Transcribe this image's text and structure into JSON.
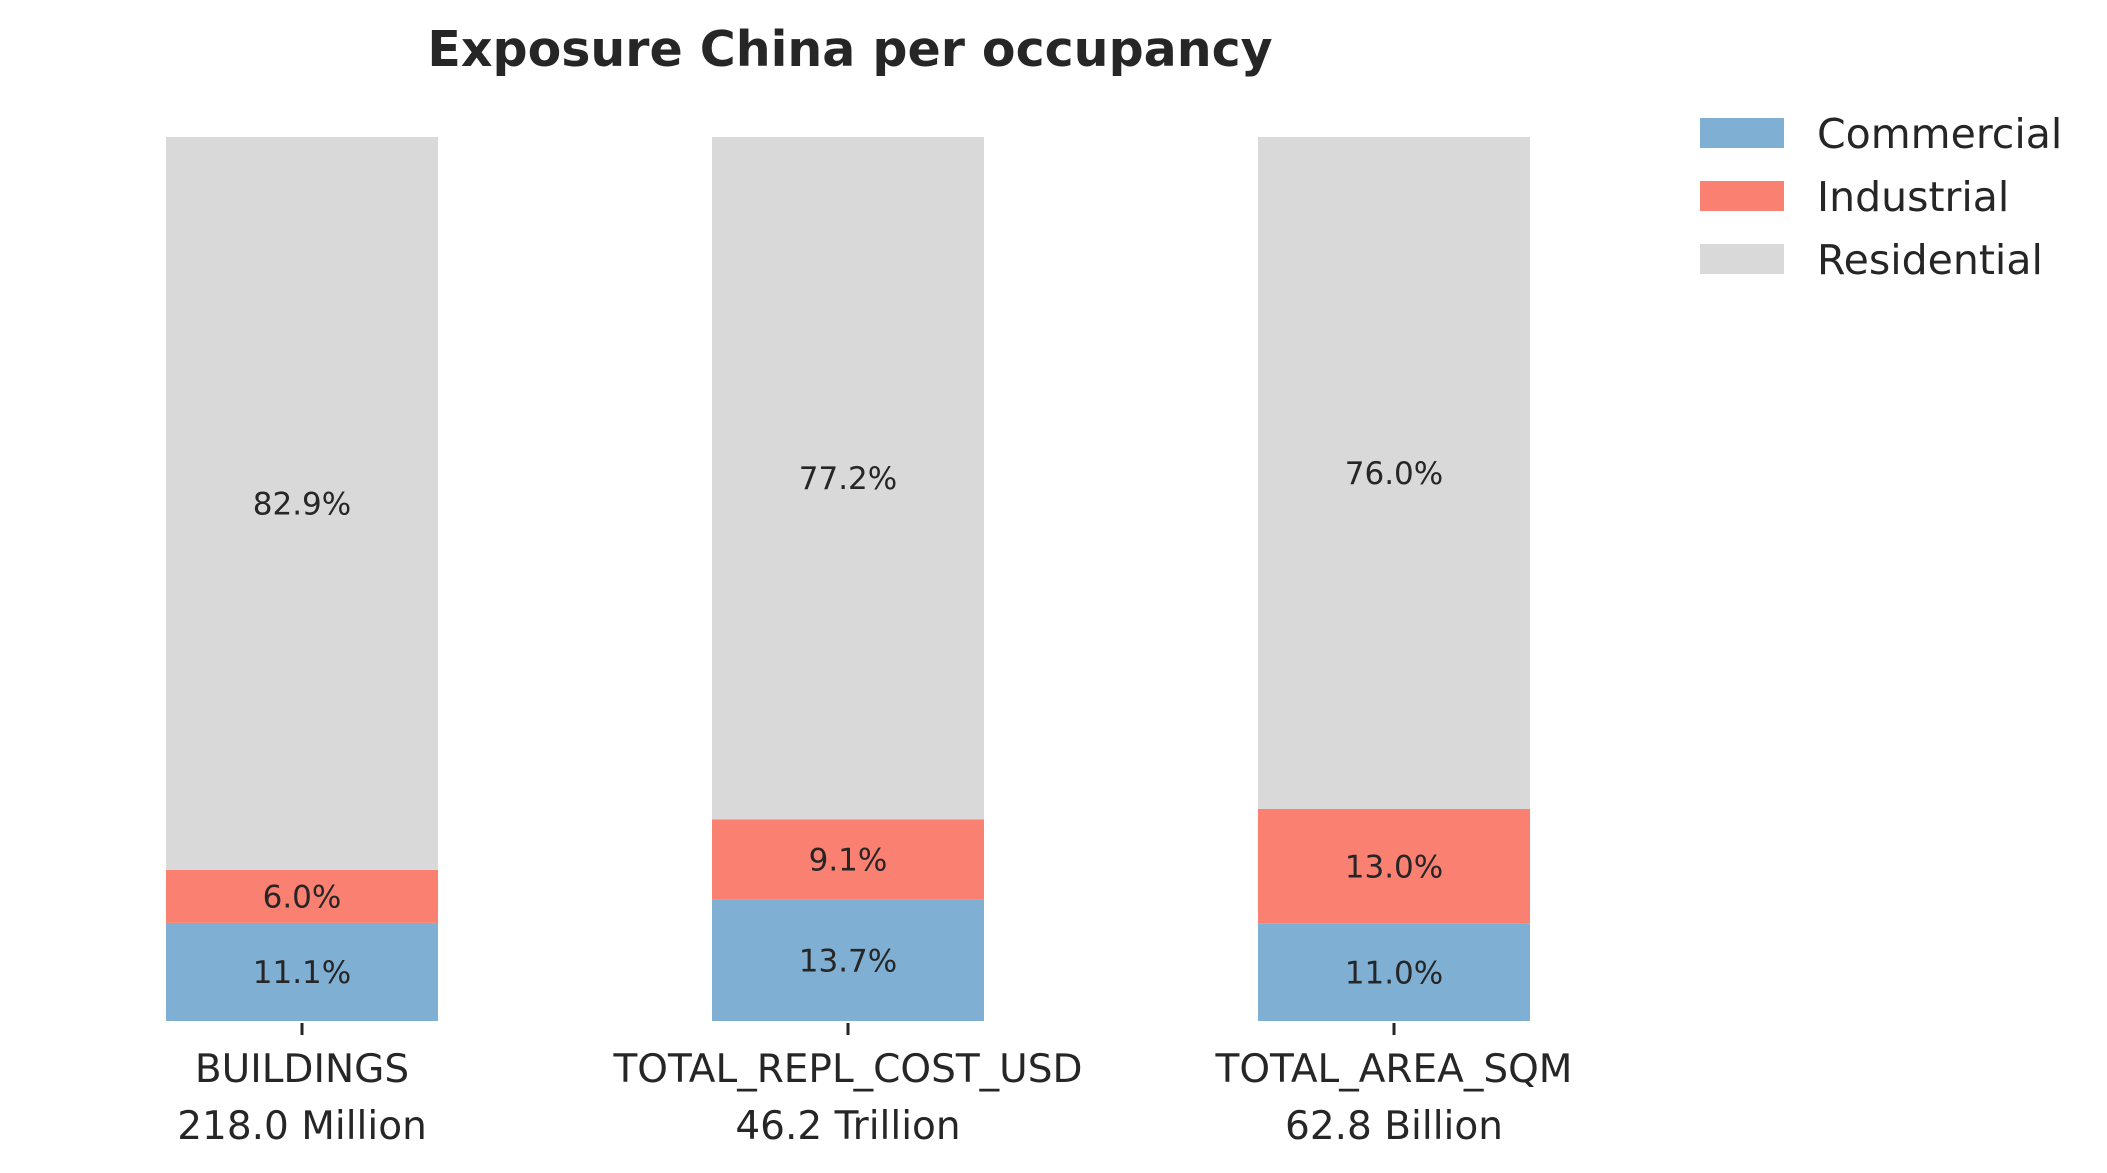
{
  "chart_data": {
    "type": "bar",
    "stacked": true,
    "title": "Exposure China per occupancy",
    "categories": [
      "BUILDINGS",
      "TOTAL_REPL_COST_USD",
      "TOTAL_AREA_SQM"
    ],
    "category_totals": [
      "218.0 Million",
      "46.2 Trillion",
      "62.8 Billion"
    ],
    "series": [
      {
        "name": "Commercial",
        "color": "#7fb0d3",
        "values": [
          11.1,
          13.7,
          11.0
        ],
        "labels": [
          "11.1%",
          "13.7%",
          "11.0%"
        ]
      },
      {
        "name": "Industrial",
        "color": "#fa8072",
        "values": [
          6.0,
          9.1,
          13.0
        ],
        "labels": [
          "6.0%",
          "9.1%",
          "13.0%"
        ]
      },
      {
        "name": "Residential",
        "color": "#d9d9d9",
        "values": [
          82.9,
          77.2,
          76.0
        ],
        "labels": [
          "82.9%",
          "77.2%",
          "76.0%"
        ]
      }
    ],
    "ylim": [
      0,
      100
    ],
    "grid": false,
    "legend_position": "top-right"
  }
}
